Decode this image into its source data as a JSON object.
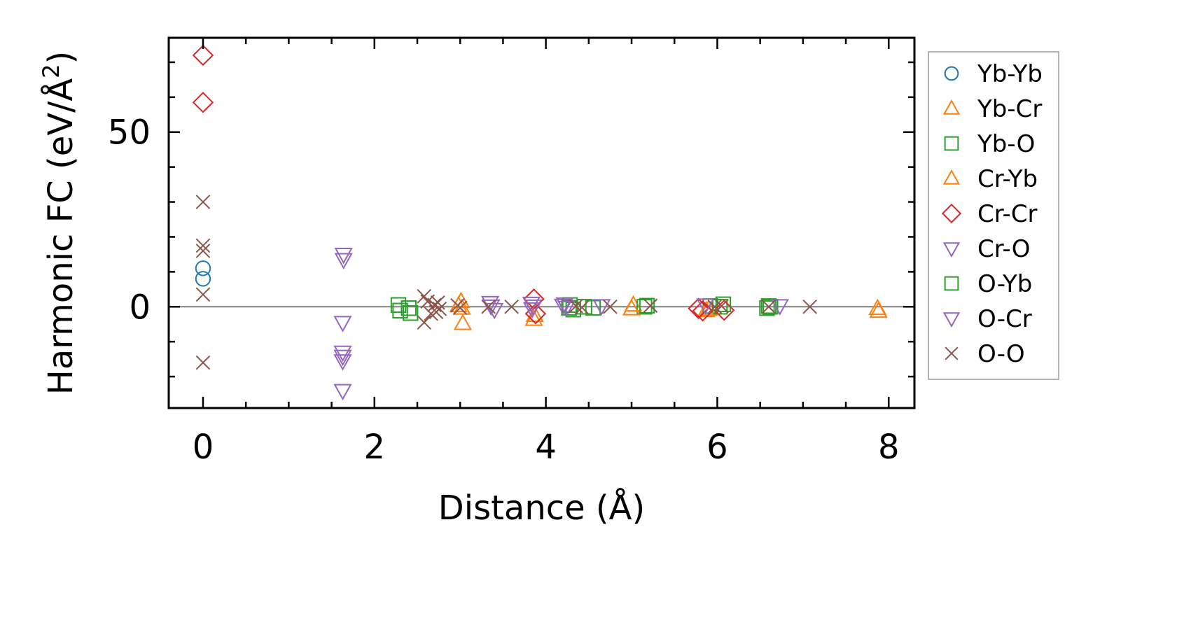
{
  "chart_data": {
    "type": "scatter",
    "title": "",
    "xlabel": "Distance (Å)",
    "ylabel": "Harmonic FC (eV/Å",
    "ylabel_sup": "2",
    "ylabel_close": ")",
    "xlim": [
      -0.4,
      8.3
    ],
    "ylim": [
      -29,
      77
    ],
    "x_ticks": [
      0,
      2,
      4,
      6,
      8
    ],
    "x_tick_labels": [
      "0",
      "2",
      "4",
      "6",
      "8"
    ],
    "y_ticks": [
      0,
      50
    ],
    "y_tick_labels": [
      "0",
      "50"
    ],
    "x_minor_step": 0.5,
    "y_minor_step": 10,
    "zero_line": true,
    "grid": false,
    "legend_position": "outside-right",
    "series": [
      {
        "name": "Yb-Yb",
        "marker": "circle",
        "color": "#1f77b4",
        "points": [
          [
            0,
            11
          ],
          [
            0,
            8
          ]
        ]
      },
      {
        "name": "Yb-Cr",
        "marker": "triangle-up",
        "color": "#ff7f0e",
        "points": [
          [
            3.01,
            1.5
          ],
          [
            3.03,
            -4.8
          ],
          [
            3.86,
            -3.6
          ],
          [
            5.02,
            0.5
          ],
          [
            5.9,
            -0.7
          ],
          [
            7.87,
            -0.5
          ],
          [
            7.88,
            -1.3
          ]
        ]
      },
      {
        "name": "Yb-O",
        "marker": "square",
        "color": "#2ca02c",
        "points": [
          [
            2.28,
            0.5
          ],
          [
            2.3,
            -1.1
          ],
          [
            2.4,
            -0.4
          ],
          [
            2.42,
            -1.8
          ],
          [
            4.27,
            -0.3
          ],
          [
            4.32,
            -0.8
          ],
          [
            4.45,
            0
          ],
          [
            4.55,
            -0.3
          ],
          [
            5.15,
            0
          ],
          [
            5.92,
            0.2
          ],
          [
            6.03,
            0
          ],
          [
            6.58,
            -0.4
          ],
          [
            6.62,
            0
          ]
        ]
      },
      {
        "name": "Cr-Yb",
        "marker": "triangle-up",
        "color": "#ff7f0e",
        "points": [
          [
            2.98,
            0.3
          ],
          [
            3.02,
            -0.4
          ],
          [
            3.87,
            -2.5
          ],
          [
            5.0,
            -0.6
          ],
          [
            5.87,
            -1.1
          ]
        ]
      },
      {
        "name": "Cr-Cr",
        "marker": "diamond",
        "color": "#d62728",
        "points": [
          [
            0,
            72
          ],
          [
            0,
            58.5
          ],
          [
            3.86,
            2.2
          ],
          [
            3.88,
            -2.0
          ],
          [
            5.78,
            -0.5
          ],
          [
            5.83,
            -1.2
          ],
          [
            6.08,
            -1.0
          ]
        ]
      },
      {
        "name": "Cr-O",
        "marker": "triangle-down",
        "color": "#9467bd",
        "points": [
          [
            1.64,
            15
          ],
          [
            1.64,
            13.5
          ],
          [
            1.63,
            -4.5
          ],
          [
            1.63,
            -13
          ],
          [
            1.63,
            -14.2
          ],
          [
            1.63,
            -15.5
          ],
          [
            1.63,
            -24
          ],
          [
            3.35,
            1.2
          ],
          [
            3.4,
            -0.8
          ],
          [
            3.83,
            1.0
          ],
          [
            3.85,
            0.2
          ],
          [
            4.2,
            0.4
          ],
          [
            4.65,
            0.3
          ]
        ]
      },
      {
        "name": "O-Yb",
        "marker": "square",
        "color": "#2ca02c",
        "points": [
          [
            4.28,
            0.5
          ],
          [
            5.18,
            0.3
          ],
          [
            6.07,
            0.7
          ],
          [
            6.6,
            0.2
          ]
        ]
      },
      {
        "name": "O-Cr",
        "marker": "triangle-down",
        "color": "#9467bd",
        "points": [
          [
            3.36,
            0.2
          ],
          [
            3.84,
            -0.6
          ],
          [
            4.22,
            0.8
          ],
          [
            4.24,
            -0.2
          ],
          [
            5.86,
            0.5
          ],
          [
            6.73,
            0.3
          ]
        ]
      },
      {
        "name": "O-O",
        "marker": "x",
        "color": "#8c564b",
        "points": [
          [
            0,
            30
          ],
          [
            0,
            17.5
          ],
          [
            0,
            16
          ],
          [
            0,
            3.5
          ],
          [
            0,
            -16
          ],
          [
            2.58,
            3
          ],
          [
            2.58,
            -4.5
          ],
          [
            2.62,
            1.5
          ],
          [
            2.66,
            -2
          ],
          [
            2.7,
            0.5
          ],
          [
            2.72,
            -1.5
          ],
          [
            2.74,
            1.2
          ],
          [
            2.76,
            -0.6
          ],
          [
            2.97,
            0.4
          ],
          [
            3.0,
            -0.3
          ],
          [
            3.33,
            0
          ],
          [
            3.6,
            0
          ],
          [
            4.35,
            0.2
          ],
          [
            4.42,
            -0.2
          ],
          [
            4.75,
            0
          ],
          [
            5.22,
            0.3
          ],
          [
            5.97,
            0
          ],
          [
            6.05,
            0.2
          ],
          [
            6.6,
            0
          ],
          [
            7.08,
            0
          ]
        ]
      }
    ]
  }
}
